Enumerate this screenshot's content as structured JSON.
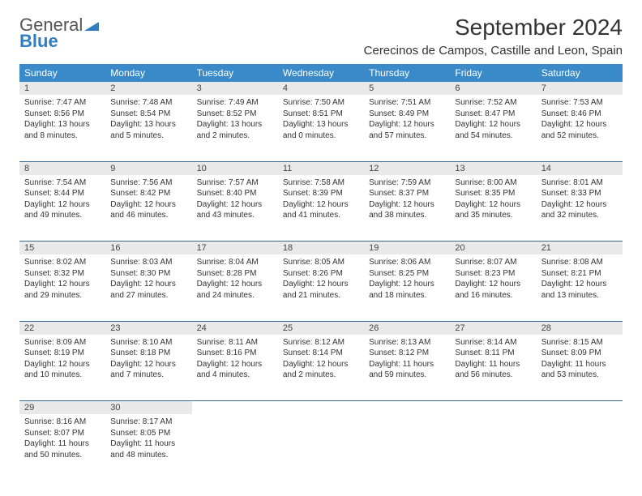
{
  "brand": {
    "part1": "General",
    "part2": "Blue",
    "part1_color": "#555555",
    "part2_color": "#2f7ec2"
  },
  "title": "September 2024",
  "location": "Cerecinos de Campos, Castille and Leon, Spain",
  "colors": {
    "header_bg": "#3a8ac9",
    "header_fg": "#ffffff",
    "daynum_bg": "#e9e9e9",
    "row_border": "#3a6a9a"
  },
  "fonts": {
    "title_size": 28,
    "location_size": 15,
    "weekday_size": 12,
    "daynum_size": 11,
    "cell_size": 10
  },
  "weekdays": [
    "Sunday",
    "Monday",
    "Tuesday",
    "Wednesday",
    "Thursday",
    "Friday",
    "Saturday"
  ],
  "weeks": [
    [
      {
        "n": "1",
        "sr": "Sunrise: 7:47 AM",
        "ss": "Sunset: 8:56 PM",
        "d1": "Daylight: 13 hours",
        "d2": "and 8 minutes."
      },
      {
        "n": "2",
        "sr": "Sunrise: 7:48 AM",
        "ss": "Sunset: 8:54 PM",
        "d1": "Daylight: 13 hours",
        "d2": "and 5 minutes."
      },
      {
        "n": "3",
        "sr": "Sunrise: 7:49 AM",
        "ss": "Sunset: 8:52 PM",
        "d1": "Daylight: 13 hours",
        "d2": "and 2 minutes."
      },
      {
        "n": "4",
        "sr": "Sunrise: 7:50 AM",
        "ss": "Sunset: 8:51 PM",
        "d1": "Daylight: 13 hours",
        "d2": "and 0 minutes."
      },
      {
        "n": "5",
        "sr": "Sunrise: 7:51 AM",
        "ss": "Sunset: 8:49 PM",
        "d1": "Daylight: 12 hours",
        "d2": "and 57 minutes."
      },
      {
        "n": "6",
        "sr": "Sunrise: 7:52 AM",
        "ss": "Sunset: 8:47 PM",
        "d1": "Daylight: 12 hours",
        "d2": "and 54 minutes."
      },
      {
        "n": "7",
        "sr": "Sunrise: 7:53 AM",
        "ss": "Sunset: 8:46 PM",
        "d1": "Daylight: 12 hours",
        "d2": "and 52 minutes."
      }
    ],
    [
      {
        "n": "8",
        "sr": "Sunrise: 7:54 AM",
        "ss": "Sunset: 8:44 PM",
        "d1": "Daylight: 12 hours",
        "d2": "and 49 minutes."
      },
      {
        "n": "9",
        "sr": "Sunrise: 7:56 AM",
        "ss": "Sunset: 8:42 PM",
        "d1": "Daylight: 12 hours",
        "d2": "and 46 minutes."
      },
      {
        "n": "10",
        "sr": "Sunrise: 7:57 AM",
        "ss": "Sunset: 8:40 PM",
        "d1": "Daylight: 12 hours",
        "d2": "and 43 minutes."
      },
      {
        "n": "11",
        "sr": "Sunrise: 7:58 AM",
        "ss": "Sunset: 8:39 PM",
        "d1": "Daylight: 12 hours",
        "d2": "and 41 minutes."
      },
      {
        "n": "12",
        "sr": "Sunrise: 7:59 AM",
        "ss": "Sunset: 8:37 PM",
        "d1": "Daylight: 12 hours",
        "d2": "and 38 minutes."
      },
      {
        "n": "13",
        "sr": "Sunrise: 8:00 AM",
        "ss": "Sunset: 8:35 PM",
        "d1": "Daylight: 12 hours",
        "d2": "and 35 minutes."
      },
      {
        "n": "14",
        "sr": "Sunrise: 8:01 AM",
        "ss": "Sunset: 8:33 PM",
        "d1": "Daylight: 12 hours",
        "d2": "and 32 minutes."
      }
    ],
    [
      {
        "n": "15",
        "sr": "Sunrise: 8:02 AM",
        "ss": "Sunset: 8:32 PM",
        "d1": "Daylight: 12 hours",
        "d2": "and 29 minutes."
      },
      {
        "n": "16",
        "sr": "Sunrise: 8:03 AM",
        "ss": "Sunset: 8:30 PM",
        "d1": "Daylight: 12 hours",
        "d2": "and 27 minutes."
      },
      {
        "n": "17",
        "sr": "Sunrise: 8:04 AM",
        "ss": "Sunset: 8:28 PM",
        "d1": "Daylight: 12 hours",
        "d2": "and 24 minutes."
      },
      {
        "n": "18",
        "sr": "Sunrise: 8:05 AM",
        "ss": "Sunset: 8:26 PM",
        "d1": "Daylight: 12 hours",
        "d2": "and 21 minutes."
      },
      {
        "n": "19",
        "sr": "Sunrise: 8:06 AM",
        "ss": "Sunset: 8:25 PM",
        "d1": "Daylight: 12 hours",
        "d2": "and 18 minutes."
      },
      {
        "n": "20",
        "sr": "Sunrise: 8:07 AM",
        "ss": "Sunset: 8:23 PM",
        "d1": "Daylight: 12 hours",
        "d2": "and 16 minutes."
      },
      {
        "n": "21",
        "sr": "Sunrise: 8:08 AM",
        "ss": "Sunset: 8:21 PM",
        "d1": "Daylight: 12 hours",
        "d2": "and 13 minutes."
      }
    ],
    [
      {
        "n": "22",
        "sr": "Sunrise: 8:09 AM",
        "ss": "Sunset: 8:19 PM",
        "d1": "Daylight: 12 hours",
        "d2": "and 10 minutes."
      },
      {
        "n": "23",
        "sr": "Sunrise: 8:10 AM",
        "ss": "Sunset: 8:18 PM",
        "d1": "Daylight: 12 hours",
        "d2": "and 7 minutes."
      },
      {
        "n": "24",
        "sr": "Sunrise: 8:11 AM",
        "ss": "Sunset: 8:16 PM",
        "d1": "Daylight: 12 hours",
        "d2": "and 4 minutes."
      },
      {
        "n": "25",
        "sr": "Sunrise: 8:12 AM",
        "ss": "Sunset: 8:14 PM",
        "d1": "Daylight: 12 hours",
        "d2": "and 2 minutes."
      },
      {
        "n": "26",
        "sr": "Sunrise: 8:13 AM",
        "ss": "Sunset: 8:12 PM",
        "d1": "Daylight: 11 hours",
        "d2": "and 59 minutes."
      },
      {
        "n": "27",
        "sr": "Sunrise: 8:14 AM",
        "ss": "Sunset: 8:11 PM",
        "d1": "Daylight: 11 hours",
        "d2": "and 56 minutes."
      },
      {
        "n": "28",
        "sr": "Sunrise: 8:15 AM",
        "ss": "Sunset: 8:09 PM",
        "d1": "Daylight: 11 hours",
        "d2": "and 53 minutes."
      }
    ],
    [
      {
        "n": "29",
        "sr": "Sunrise: 8:16 AM",
        "ss": "Sunset: 8:07 PM",
        "d1": "Daylight: 11 hours",
        "d2": "and 50 minutes."
      },
      {
        "n": "30",
        "sr": "Sunrise: 8:17 AM",
        "ss": "Sunset: 8:05 PM",
        "d1": "Daylight: 11 hours",
        "d2": "and 48 minutes."
      },
      null,
      null,
      null,
      null,
      null
    ]
  ]
}
